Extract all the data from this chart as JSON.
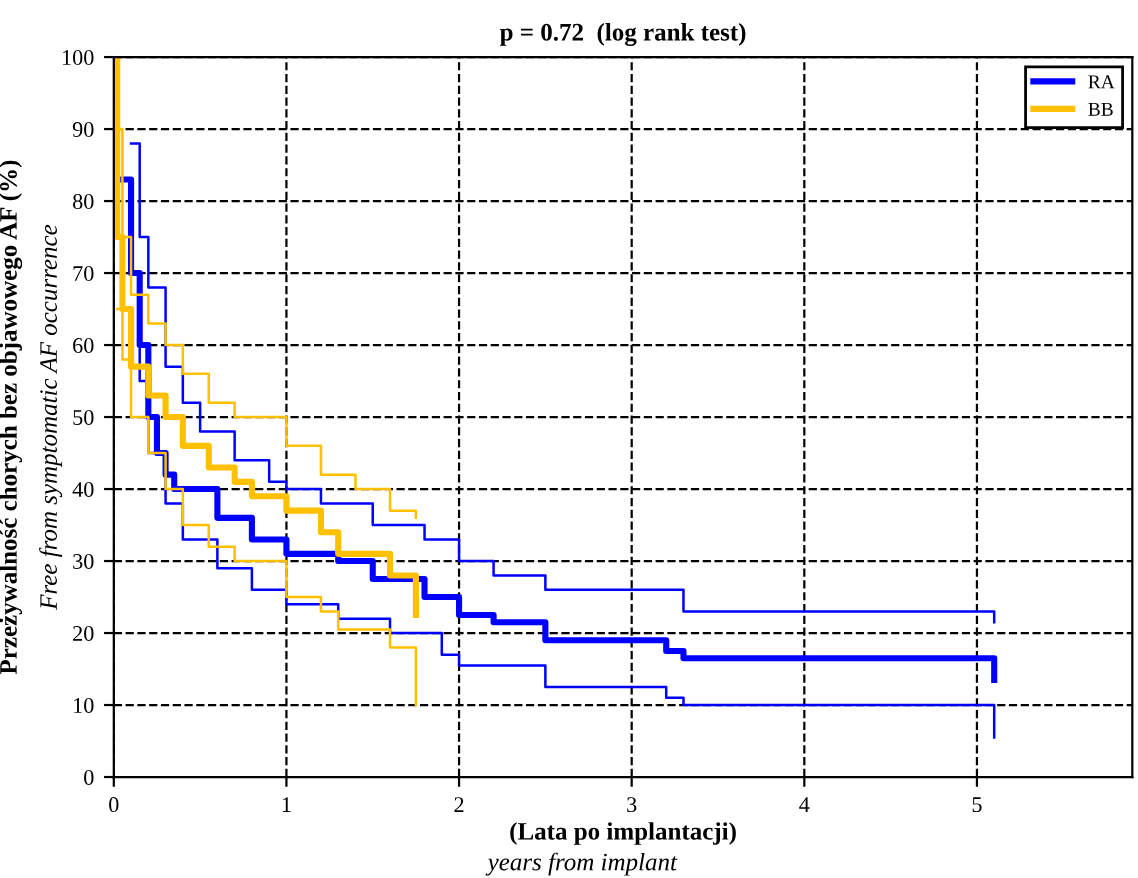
{
  "chart_data": {
    "type": "step",
    "title": "p = 0.72  (log rank test)",
    "xlabel": "(Lata po implantacji)",
    "ylabel": "Przeżywalność chorych bez objawowego AF (%)",
    "annotations": [
      "years from implant",
      "Free from symptomatic AF occurrence"
    ],
    "xlim": [
      0,
      5.9
    ],
    "ylim": [
      0,
      100
    ],
    "xticks": [
      0,
      1,
      2,
      3,
      4,
      5
    ],
    "yticks": [
      0,
      10,
      20,
      30,
      40,
      50,
      60,
      70,
      80,
      90,
      100
    ],
    "grid": true,
    "legend": "top right",
    "line_style": "solid",
    "series": [
      {
        "name": "RA",
        "color": "#0000ff",
        "x": [
          0.05,
          0.1,
          0.15,
          0.2,
          0.25,
          0.3,
          0.35,
          0.6,
          0.8,
          1.0,
          1.3,
          1.5,
          1.8,
          2.0,
          2.2,
          2.5,
          3.2,
          3.3,
          5.1,
          5.1
        ],
        "values": [
          83,
          70,
          60,
          50,
          45,
          42,
          40,
          36,
          33,
          31,
          30,
          27.5,
          25,
          22.5,
          21.5,
          19,
          17.5,
          16.5,
          16.5,
          13.5
        ]
      },
      {
        "color": "#0000ff",
        "x": [
          0.1,
          0.15,
          0.2,
          0.3,
          0.4,
          0.5,
          0.7,
          0.9,
          1.0,
          1.2,
          1.5,
          1.8,
          2.0,
          2.2,
          2.5,
          3.3,
          5.1,
          5.1
        ],
        "values": [
          88,
          75,
          68,
          57,
          52,
          48,
          44,
          41,
          40,
          38,
          35,
          33,
          30,
          28,
          26,
          23,
          23,
          21.5
        ]
      },
      {
        "color": "#0000ff",
        "x": [
          0.1,
          0.15,
          0.2,
          0.3,
          0.4,
          0.6,
          0.8,
          1.0,
          1.3,
          1.6,
          1.9,
          2.0,
          2.5,
          3.2,
          3.3,
          5.1,
          5.1
        ],
        "values": [
          70,
          55,
          45,
          38,
          33,
          29,
          26,
          24,
          22,
          20,
          17,
          15.5,
          12.5,
          11,
          10,
          10,
          5.5
        ]
      },
      {
        "name": "BB",
        "color": "#ffc000",
        "x": [
          0,
          0.02,
          0.05,
          0.1,
          0.2,
          0.3,
          0.4,
          0.55,
          0.7,
          0.8,
          1.0,
          1.2,
          1.3,
          1.6,
          1.75,
          1.75
        ],
        "values": [
          100,
          75,
          65,
          57,
          53,
          50,
          46,
          43,
          41,
          39,
          37,
          34,
          31,
          28,
          28,
          22.5
        ]
      },
      {
        "color": "#ffc000",
        "x": [
          0.02,
          0.05,
          0.1,
          0.2,
          0.3,
          0.4,
          0.55,
          0.7,
          1.0,
          1.2,
          1.4,
          1.6,
          1.75
        ],
        "values": [
          90,
          75,
          67,
          63,
          60,
          56,
          52,
          50,
          46,
          42,
          40,
          37,
          36
        ]
      },
      {
        "color": "#ffc000",
        "x": [
          0.02,
          0.05,
          0.1,
          0.2,
          0.3,
          0.4,
          0.55,
          0.7,
          1.0,
          1.2,
          1.3,
          1.6,
          1.75,
          1.75
        ],
        "values": [
          65,
          58,
          50,
          45,
          40,
          35,
          32,
          30,
          25,
          23,
          20.5,
          18,
          18,
          10
        ]
      }
    ]
  }
}
